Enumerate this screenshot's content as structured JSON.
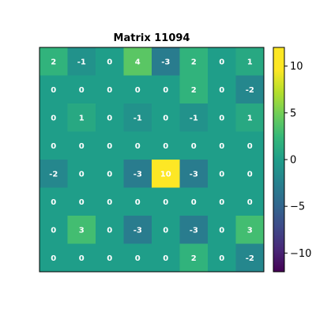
{
  "chart_data": {
    "type": "heatmap",
    "title": "Matrix 11094",
    "colormap": "viridis",
    "vmin": -12,
    "vmax": 12,
    "matrix": [
      [
        2,
        -1,
        0,
        4,
        -3,
        2,
        0,
        1
      ],
      [
        0,
        0,
        0,
        0,
        0,
        2,
        0,
        -2
      ],
      [
        0,
        1,
        0,
        -1,
        0,
        -1,
        0,
        1
      ],
      [
        0,
        0,
        0,
        0,
        0,
        0,
        0,
        0
      ],
      [
        -2,
        0,
        0,
        -3,
        10,
        -3,
        0,
        0
      ],
      [
        0,
        0,
        0,
        0,
        0,
        0,
        0,
        0
      ],
      [
        0,
        3,
        0,
        -3,
        0,
        -3,
        0,
        3
      ],
      [
        0,
        0,
        0,
        0,
        0,
        2,
        0,
        -2
      ]
    ],
    "colorbar": {
      "ticks": [
        10,
        5,
        0,
        -5,
        -10
      ],
      "tick_labels": [
        "10",
        "5",
        "0",
        "−5",
        "−10"
      ]
    }
  }
}
